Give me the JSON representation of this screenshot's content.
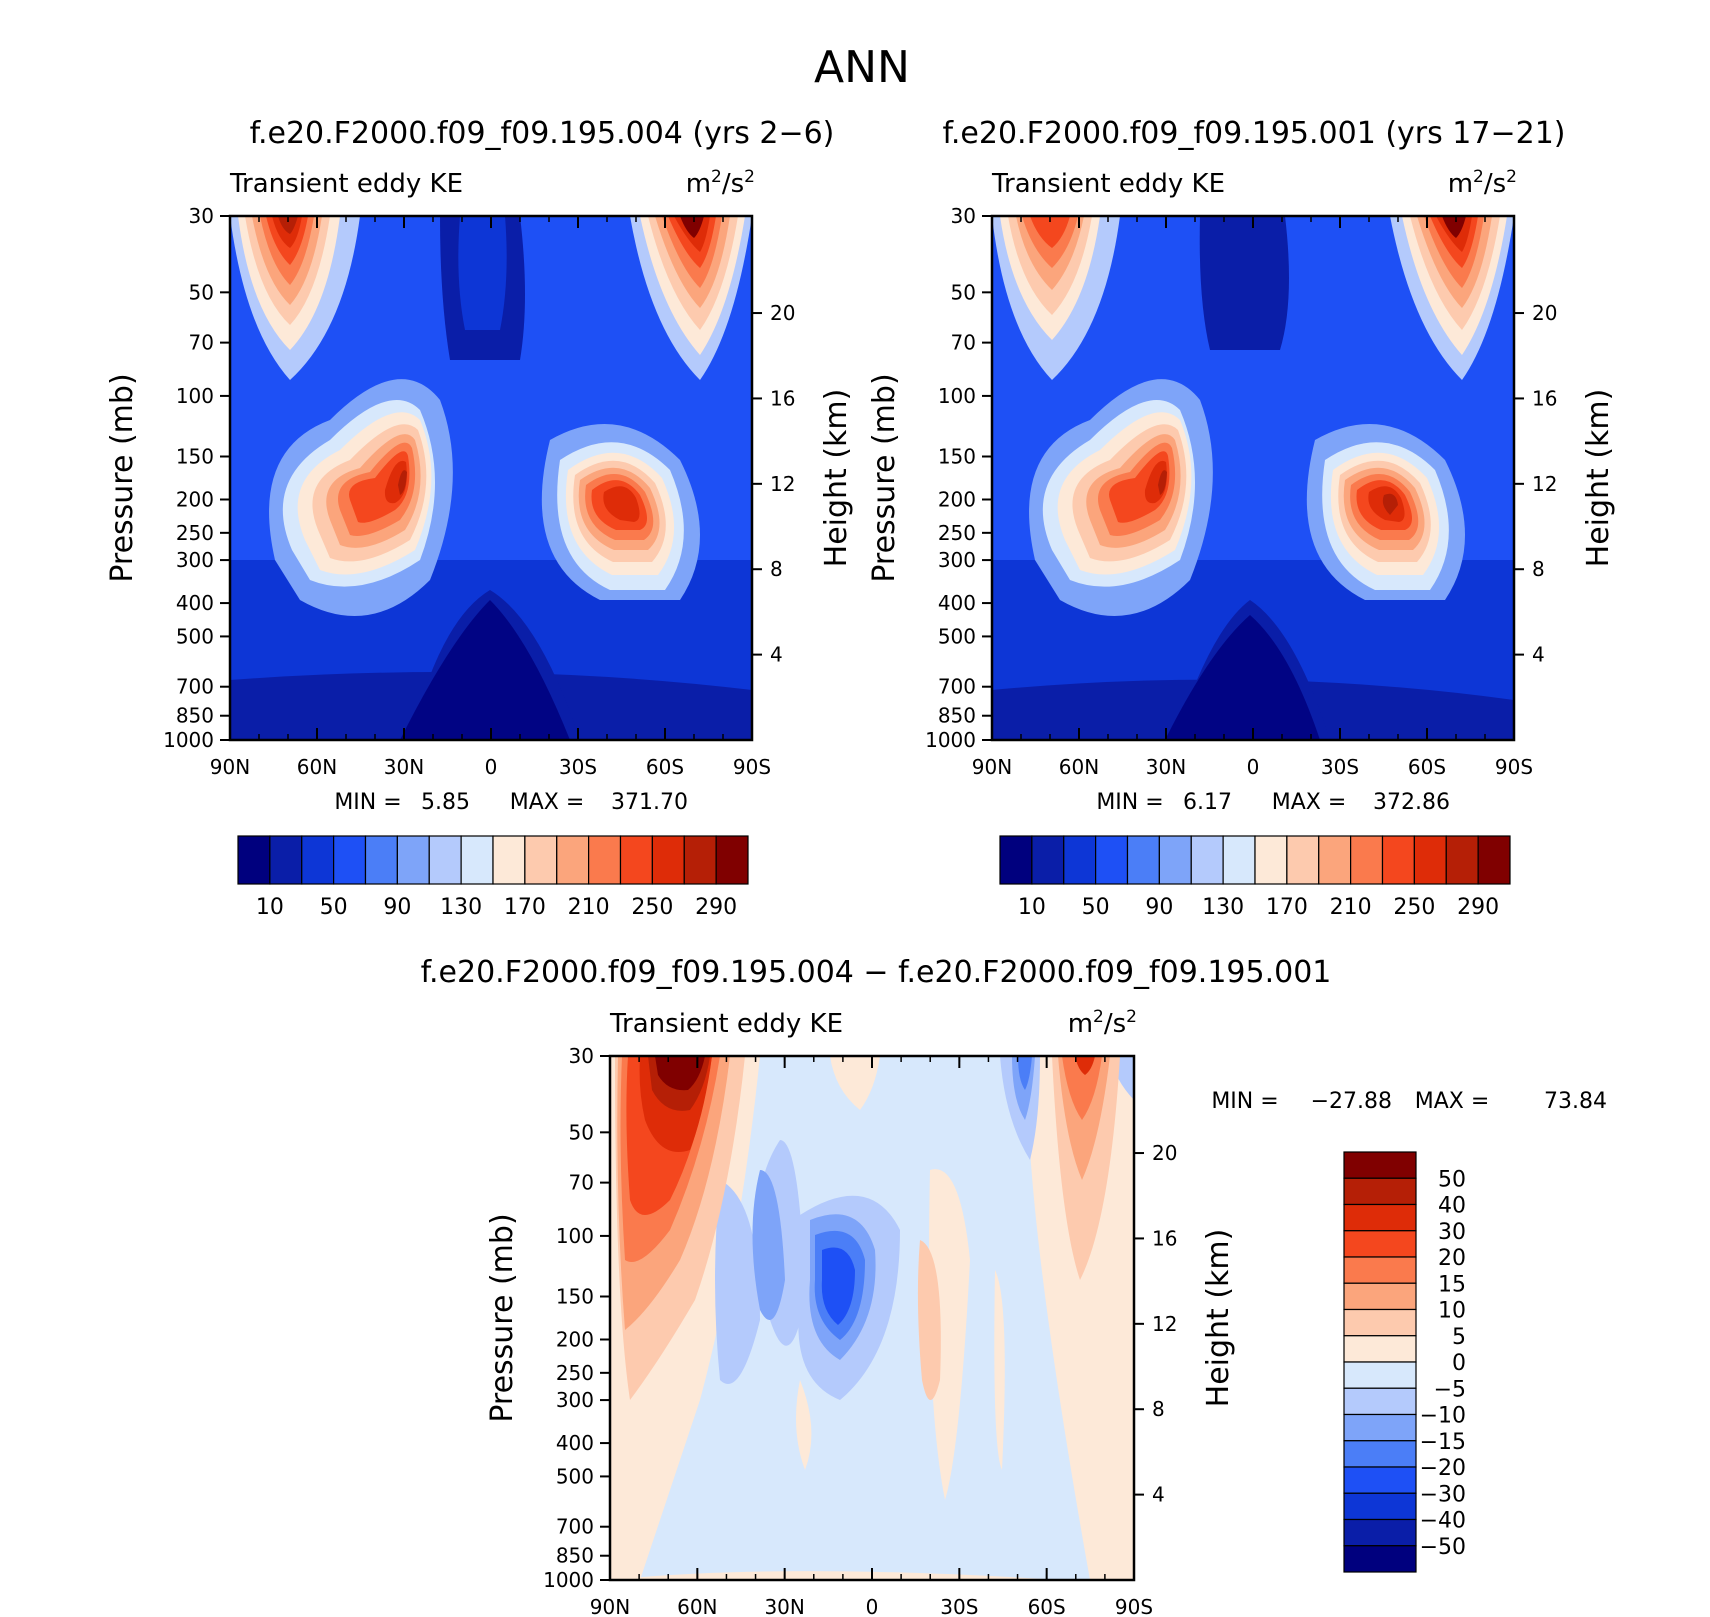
{
  "page_title": "ANN",
  "chart_data": [
    {
      "type": "heatmap",
      "id": "panel1",
      "title": "f.e20.F2000.f09_f09.195.004 (yrs 2-6)",
      "left_label": "Transient eddy KE",
      "units": {
        "base": "m",
        "exp": "2",
        "rest": "/s",
        "exp2": "2"
      },
      "ylabel": "Pressure (mb)",
      "ylabel_right": "Height (km)",
      "x_ticks": [
        "90N",
        "60N",
        "30N",
        "0",
        "30S",
        "60S",
        "90S"
      ],
      "x_values": [
        90,
        60,
        30,
        0,
        -30,
        -60,
        -90
      ],
      "y_ticks": [
        "30",
        "50",
        "70",
        "100",
        "150",
        "200",
        "250",
        "300",
        "400",
        "500",
        "700",
        "850",
        "1000"
      ],
      "y_values": [
        30,
        50,
        70,
        100,
        150,
        200,
        250,
        300,
        400,
        500,
        700,
        850,
        1000
      ],
      "height_ticks": [
        "20",
        "16",
        "12",
        "8",
        "4"
      ],
      "height_values": [
        20,
        16,
        12,
        8,
        4
      ],
      "stats": {
        "min_label": "MIN =",
        "min": "5.85",
        "max_label": "MAX =",
        "max": "371.70"
      },
      "colorbar": {
        "labels": [
          "10",
          "50",
          "90",
          "130",
          "170",
          "210",
          "250",
          "290"
        ],
        "colors": [
          "#00007e",
          "#0a1ea8",
          "#0d36d6",
          "#1e50f5",
          "#4b7ef7",
          "#7ea4f9",
          "#b4cafc",
          "#d7e8fc",
          "#fde9d8",
          "#fdcaae",
          "#fba57c",
          "#fa7a4d",
          "#f4471e",
          "#de2c08",
          "#b51f06",
          "#800000"
        ]
      }
    },
    {
      "type": "heatmap",
      "id": "panel2",
      "title": "f.e20.F2000.f09_f09.195.001 (yrs 17-21)",
      "left_label": "Transient eddy KE",
      "units": {
        "base": "m",
        "exp": "2",
        "rest": "/s",
        "exp2": "2"
      },
      "ylabel": "Pressure (mb)",
      "ylabel_right": "Height (km)",
      "x_ticks": [
        "90N",
        "60N",
        "30N",
        "0",
        "30S",
        "60S",
        "90S"
      ],
      "x_values": [
        90,
        60,
        30,
        0,
        -30,
        -60,
        -90
      ],
      "y_ticks": [
        "30",
        "50",
        "70",
        "100",
        "150",
        "200",
        "250",
        "300",
        "400",
        "500",
        "700",
        "850",
        "1000"
      ],
      "y_values": [
        30,
        50,
        70,
        100,
        150,
        200,
        250,
        300,
        400,
        500,
        700,
        850,
        1000
      ],
      "height_ticks": [
        "20",
        "16",
        "12",
        "8",
        "4"
      ],
      "height_values": [
        20,
        16,
        12,
        8,
        4
      ],
      "stats": {
        "min_label": "MIN =",
        "min": "6.17",
        "max_label": "MAX =",
        "max": "372.86"
      },
      "colorbar": {
        "labels": [
          "10",
          "50",
          "90",
          "130",
          "170",
          "210",
          "250",
          "290"
        ],
        "colors": [
          "#00007e",
          "#0a1ea8",
          "#0d36d6",
          "#1e50f5",
          "#4b7ef7",
          "#7ea4f9",
          "#b4cafc",
          "#d7e8fc",
          "#fde9d8",
          "#fdcaae",
          "#fba57c",
          "#fa7a4d",
          "#f4471e",
          "#de2c08",
          "#b51f06",
          "#800000"
        ]
      }
    },
    {
      "type": "heatmap",
      "id": "panel3",
      "title": "f.e20.F2000.f09_f09.195.004 - f.e20.F2000.f09_f09.195.001",
      "left_label": "Transient eddy KE",
      "units": {
        "base": "m",
        "exp": "2",
        "rest": "/s",
        "exp2": "2"
      },
      "ylabel": "Pressure (mb)",
      "ylabel_right": "Height (km)",
      "x_ticks": [
        "90N",
        "60N",
        "30N",
        "0",
        "30S",
        "60S",
        "90S"
      ],
      "x_values": [
        90,
        60,
        30,
        0,
        -30,
        -60,
        -90
      ],
      "y_ticks": [
        "30",
        "50",
        "70",
        "100",
        "150",
        "200",
        "250",
        "300",
        "400",
        "500",
        "700",
        "850",
        "1000"
      ],
      "y_values": [
        30,
        50,
        70,
        100,
        150,
        200,
        250,
        300,
        400,
        500,
        700,
        850,
        1000
      ],
      "height_ticks": [
        "20",
        "16",
        "12",
        "8",
        "4"
      ],
      "height_values": [
        20,
        16,
        12,
        8,
        4
      ],
      "stats": {
        "min_label": "MIN =",
        "min": "-27.88",
        "max_label": "MAX =",
        "max": "73.84"
      },
      "colorbar": {
        "labels": [
          "50",
          "40",
          "30",
          "20",
          "15",
          "10",
          "5",
          "0",
          "-5",
          "-10",
          "-15",
          "-20",
          "-30",
          "-40",
          "-50"
        ],
        "colors": [
          "#800000",
          "#b51f06",
          "#de2c08",
          "#f4471e",
          "#fa7a4d",
          "#fba57c",
          "#fdcaae",
          "#fde9d8",
          "#d7e8fc",
          "#b4cafc",
          "#7ea4f9",
          "#4b7ef7",
          "#1e50f5",
          "#0d36d6",
          "#0a1ea8",
          "#00007e"
        ]
      }
    }
  ]
}
